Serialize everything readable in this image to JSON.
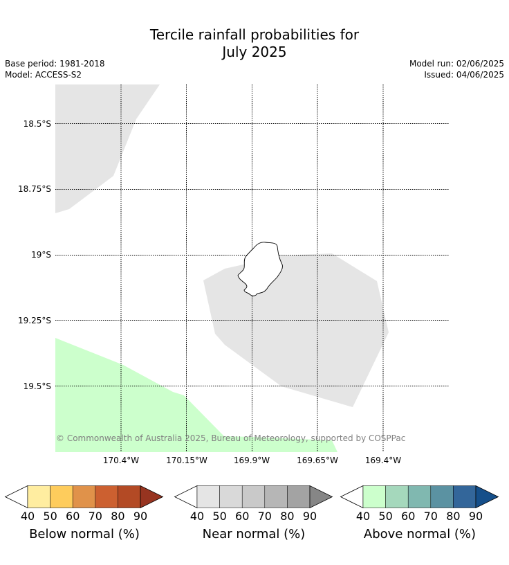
{
  "title": {
    "line1": "Tercile rainfall probabilities for",
    "line2": "July 2025"
  },
  "info": {
    "base_period": "Base period: 1981-2018",
    "model": "Model: ACCESS-S2",
    "model_run": "Model run: 02/06/2025",
    "issued": "Issued: 04/06/2025"
  },
  "map": {
    "lat_labels": [
      "18.5°S",
      "18.75°S",
      "19°S",
      "19.25°S",
      "19.5°S"
    ],
    "lon_labels": [
      "170.4°W",
      "170.15°W",
      "169.9°W",
      "169.65°W",
      "169.4°W"
    ],
    "copyright": "© Commonwealth of Australia 2025, Bureau of Meteorology, supported by COSPPac",
    "region_colors": {
      "near_normal": "#e5e5e5",
      "above_normal": "#ccffcc"
    }
  },
  "colorbars": [
    {
      "title": "Below normal (%)",
      "ticks": [
        "40",
        "50",
        "60",
        "70",
        "80",
        "90"
      ],
      "colors": [
        "#ffffff",
        "#ffeda0",
        "#fecc5c",
        "#e0924a",
        "#cc6030",
        "#b34a25",
        "#973420"
      ]
    },
    {
      "title": "Near normal (%)",
      "ticks": [
        "40",
        "50",
        "60",
        "70",
        "80",
        "90"
      ],
      "colors": [
        "#ffffff",
        "#e5e5e5",
        "#d9d9d9",
        "#c9c9c9",
        "#b6b6b6",
        "#a3a3a3",
        "#868686"
      ]
    },
    {
      "title": "Above normal (%)",
      "ticks": [
        "40",
        "50",
        "60",
        "70",
        "80",
        "90"
      ],
      "colors": [
        "#ffffff",
        "#ccffcc",
        "#a5d8bc",
        "#80b8b0",
        "#5b92a2",
        "#33669a",
        "#154f8a"
      ]
    }
  ]
}
